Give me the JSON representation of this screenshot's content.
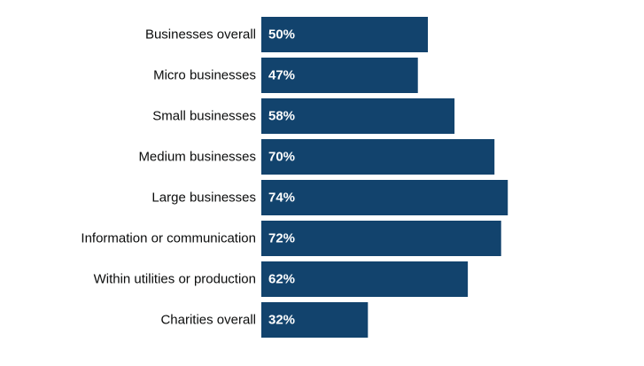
{
  "chart_data": {
    "type": "bar",
    "orientation": "horizontal",
    "categories": [
      "Businesses overall",
      "Micro businesses",
      "Small businesses",
      "Medium businesses",
      "Large businesses",
      "Information or communication",
      "Within utilities or production",
      "Charities overall"
    ],
    "values": [
      50,
      47,
      58,
      70,
      74,
      72,
      62,
      32
    ],
    "value_labels": [
      "50%",
      "47%",
      "58%",
      "70%",
      "74%",
      "72%",
      "62%",
      "32%"
    ],
    "xlim": [
      0,
      100
    ],
    "grid": false,
    "legend": "none",
    "bar_color": "#12436d",
    "label_color": "#0b0c0c",
    "value_label_color": "#ffffff"
  }
}
